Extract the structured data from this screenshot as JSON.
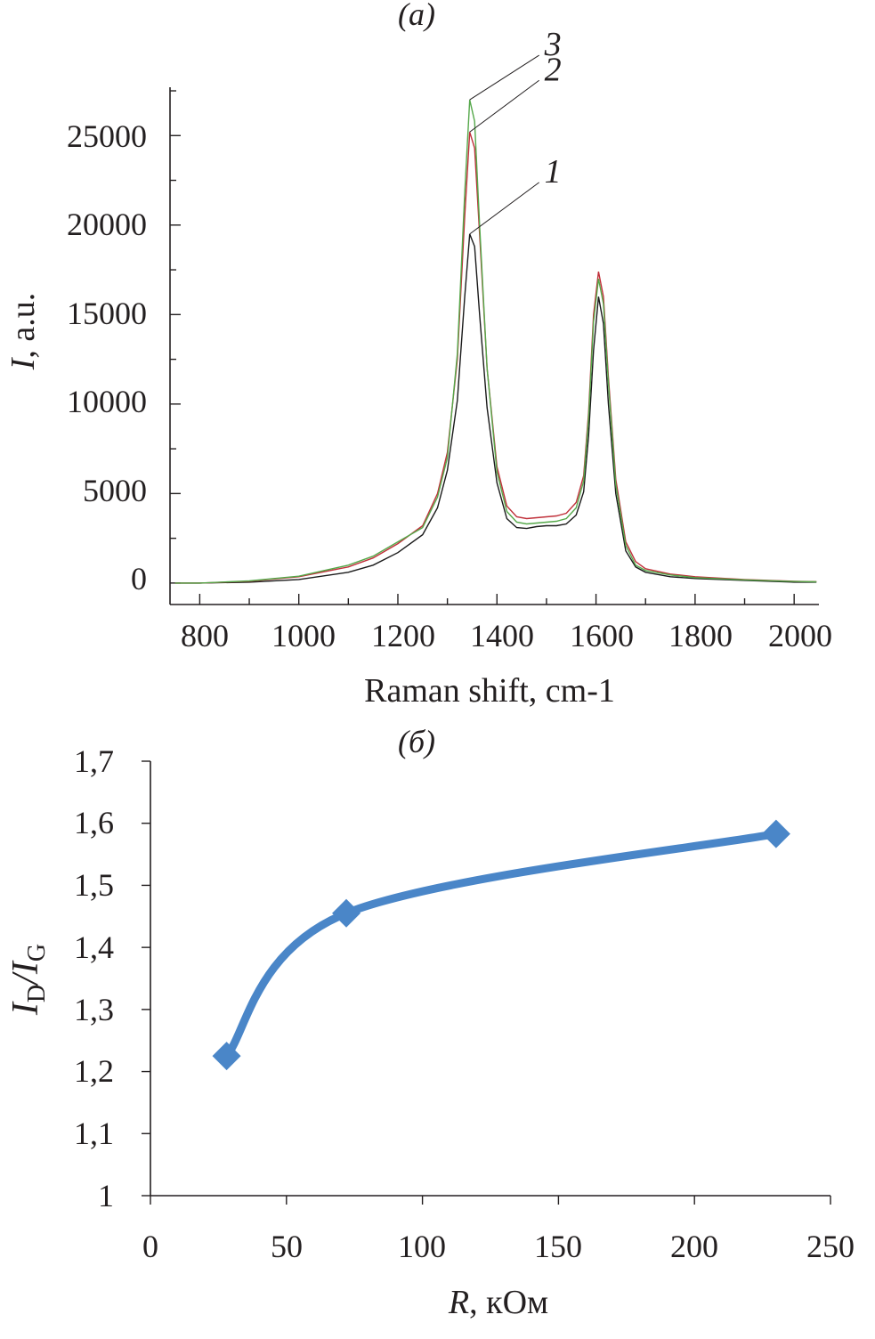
{
  "chart_data": [
    {
      "panel_label": "(a)",
      "type": "line",
      "xlabel": "Raman shift, cm-1",
      "ylabel_italic": "I",
      "ylabel_rest": ", a.u.",
      "xlim": [
        740,
        2050
      ],
      "ylim": [
        -1200,
        27700
      ],
      "xticks": [
        "800",
        "1000",
        "1200",
        "1400",
        "1600",
        "1800",
        "2000"
      ],
      "yticks": [
        "0",
        "5000",
        "10000",
        "15000",
        "20000",
        "25000"
      ],
      "series": [
        {
          "name": "1",
          "color": "#1a1a1a",
          "points": [
            [
              750,
              0
            ],
            [
              800,
              0
            ],
            [
              900,
              50
            ],
            [
              1000,
              200
            ],
            [
              1100,
              600
            ],
            [
              1150,
              1000
            ],
            [
              1200,
              1700
            ],
            [
              1250,
              2700
            ],
            [
              1280,
              4200
            ],
            [
              1300,
              6300
            ],
            [
              1320,
              10200
            ],
            [
              1335,
              16000
            ],
            [
              1345,
              19500
            ],
            [
              1355,
              18800
            ],
            [
              1365,
              15000
            ],
            [
              1380,
              9800
            ],
            [
              1400,
              5600
            ],
            [
              1420,
              3600
            ],
            [
              1440,
              3100
            ],
            [
              1460,
              3050
            ],
            [
              1480,
              3150
            ],
            [
              1500,
              3200
            ],
            [
              1520,
              3200
            ],
            [
              1540,
              3300
            ],
            [
              1560,
              3800
            ],
            [
              1575,
              5100
            ],
            [
              1585,
              8200
            ],
            [
              1595,
              13000
            ],
            [
              1605,
              16000
            ],
            [
              1615,
              14500
            ],
            [
              1625,
              10000
            ],
            [
              1640,
              5000
            ],
            [
              1660,
              1800
            ],
            [
              1680,
              900
            ],
            [
              1700,
              600
            ],
            [
              1750,
              350
            ],
            [
              1800,
              250
            ],
            [
              1900,
              150
            ],
            [
              2000,
              50
            ],
            [
              2045,
              50
            ]
          ]
        },
        {
          "name": "2",
          "color": "#c0303a",
          "points": [
            [
              750,
              0
            ],
            [
              800,
              0
            ],
            [
              900,
              100
            ],
            [
              1000,
              350
            ],
            [
              1100,
              900
            ],
            [
              1150,
              1400
            ],
            [
              1200,
              2200
            ],
            [
              1250,
              3200
            ],
            [
              1280,
              5000
            ],
            [
              1300,
              7300
            ],
            [
              1320,
              12500
            ],
            [
              1335,
              20500
            ],
            [
              1345,
              25200
            ],
            [
              1355,
              24300
            ],
            [
              1365,
              19500
            ],
            [
              1380,
              12000
            ],
            [
              1400,
              6500
            ],
            [
              1420,
              4300
            ],
            [
              1440,
              3700
            ],
            [
              1460,
              3600
            ],
            [
              1480,
              3650
            ],
            [
              1500,
              3700
            ],
            [
              1520,
              3750
            ],
            [
              1540,
              3900
            ],
            [
              1560,
              4500
            ],
            [
              1575,
              6000
            ],
            [
              1585,
              9500
            ],
            [
              1595,
              15000
            ],
            [
              1605,
              17400
            ],
            [
              1615,
              16000
            ],
            [
              1625,
              11500
            ],
            [
              1640,
              5800
            ],
            [
              1660,
              2300
            ],
            [
              1680,
              1200
            ],
            [
              1700,
              800
            ],
            [
              1750,
              500
            ],
            [
              1800,
              350
            ],
            [
              1900,
              200
            ],
            [
              2000,
              100
            ],
            [
              2045,
              80
            ]
          ]
        },
        {
          "name": "3",
          "color": "#55a84a",
          "points": [
            [
              750,
              0
            ],
            [
              800,
              0
            ],
            [
              900,
              120
            ],
            [
              1000,
              380
            ],
            [
              1100,
              1000
            ],
            [
              1150,
              1500
            ],
            [
              1200,
              2300
            ],
            [
              1250,
              3100
            ],
            [
              1280,
              4800
            ],
            [
              1300,
              7000
            ],
            [
              1320,
              12800
            ],
            [
              1335,
              21800
            ],
            [
              1345,
              27000
            ],
            [
              1355,
              25800
            ],
            [
              1365,
              20000
            ],
            [
              1380,
              12000
            ],
            [
              1400,
              6200
            ],
            [
              1420,
              4000
            ],
            [
              1440,
              3400
            ],
            [
              1460,
              3300
            ],
            [
              1480,
              3350
            ],
            [
              1500,
              3400
            ],
            [
              1520,
              3450
            ],
            [
              1540,
              3600
            ],
            [
              1560,
              4200
            ],
            [
              1575,
              5700
            ],
            [
              1585,
              9200
            ],
            [
              1595,
              14600
            ],
            [
              1605,
              17000
            ],
            [
              1615,
              15600
            ],
            [
              1625,
              11200
            ],
            [
              1640,
              5500
            ],
            [
              1660,
              2100
            ],
            [
              1680,
              1000
            ],
            [
              1700,
              700
            ],
            [
              1750,
              450
            ],
            [
              1800,
              300
            ],
            [
              1900,
              180
            ],
            [
              2000,
              90
            ],
            [
              2045,
              70
            ]
          ]
        }
      ]
    },
    {
      "panel_label": "(б)",
      "type": "line",
      "xlabel_italic": "R",
      "xlabel_rest": ", кОм",
      "ylabel_main": "I",
      "ylabel_sub1": "D",
      "ylabel_sep": "/I",
      "ylabel_sub2": "G",
      "xlim": [
        0,
        250
      ],
      "ylim": [
        1,
        1.7
      ],
      "xticks": [
        "0",
        "50",
        "100",
        "150",
        "200",
        "250"
      ],
      "yticks": [
        "1",
        "1,1",
        "1,2",
        "1,3",
        "1,4",
        "1,5",
        "1,6",
        "1,7"
      ],
      "color": "#4a86c8",
      "x": [
        28,
        72,
        230
      ],
      "y": [
        1.225,
        1.455,
        1.583
      ]
    }
  ]
}
